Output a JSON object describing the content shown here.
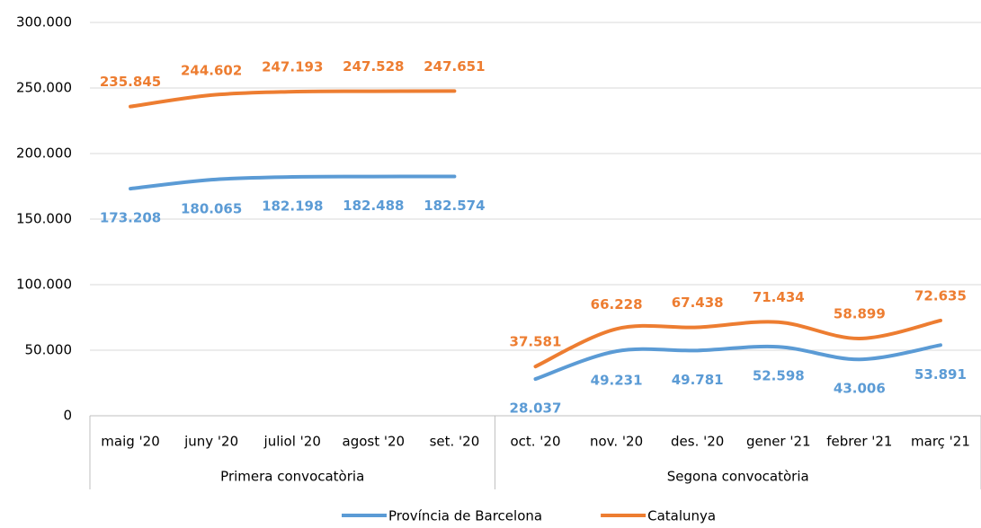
{
  "chart_data": {
    "type": "line",
    "groups": [
      {
        "label": "Primera convocatòria",
        "categories": [
          "maig '20",
          "juny '20",
          "juliol '20",
          "agost '20",
          "set. '20"
        ]
      },
      {
        "label": "Segona convocatòria",
        "categories": [
          "oct. '20",
          "nov. '20",
          "des. '20",
          "gener '21",
          "febrer '21",
          "març '21"
        ]
      }
    ],
    "series": [
      {
        "name": "Província de Barcelona",
        "color": "#5b9bd5",
        "values": [
          173208,
          180065,
          182198,
          182488,
          182574,
          28037,
          49231,
          49781,
          52598,
          43006,
          53891
        ],
        "value_labels": [
          "173.208",
          "180.065",
          "182.198",
          "182.488",
          "182.574",
          "28.037",
          "49.231",
          "49.781",
          "52.598",
          "43.006",
          "53.891"
        ]
      },
      {
        "name": "Catalunya",
        "color": "#ed7d31",
        "values": [
          235845,
          244602,
          247193,
          247528,
          247651,
          37581,
          66228,
          67438,
          71434,
          58899,
          72635
        ],
        "value_labels": [
          "235.845",
          "244.602",
          "247.193",
          "247.528",
          "247.651",
          "37.581",
          "66.228",
          "67.438",
          "71.434",
          "58.899",
          "72.635"
        ]
      }
    ],
    "ylim": [
      0,
      300000
    ],
    "yticks": [
      0,
      {
        "value": 50000,
        "label": "50.000"
      },
      {
        "value": 100000,
        "label": "100.000"
      },
      {
        "value": 150000,
        "label": "150.000"
      },
      {
        "value": 200000,
        "label": "200.000"
      },
      {
        "value": 250000,
        "label": "250.000"
      },
      {
        "value": 300000,
        "label": "300.000"
      }
    ],
    "grid": true,
    "legend": "bottom"
  }
}
